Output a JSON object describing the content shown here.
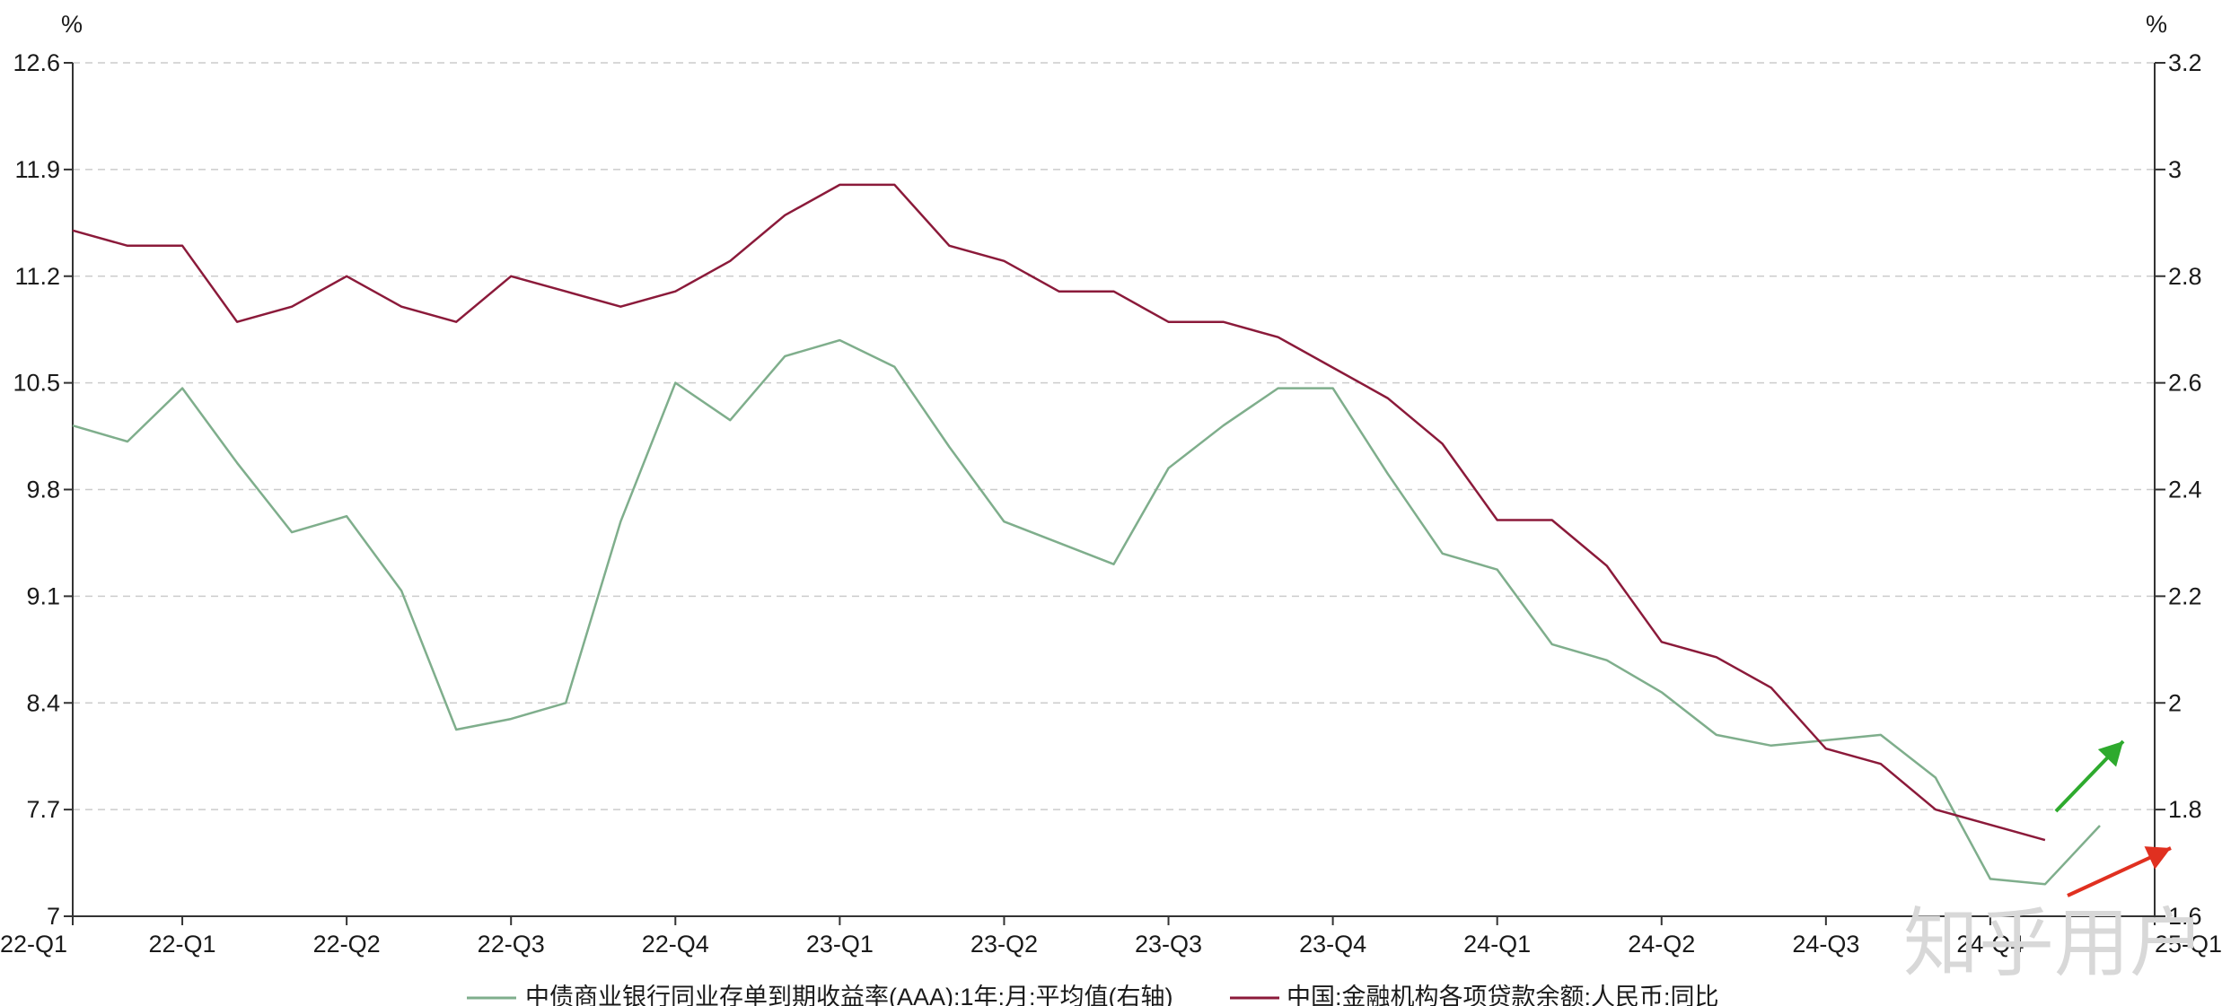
{
  "chart_data": {
    "type": "line",
    "left_axis": {
      "unit": "%",
      "ylim": [
        7,
        12.6
      ],
      "ticks": [
        "7",
        "7.7",
        "8.4",
        "9.1",
        "9.8",
        "10.5",
        "11.2",
        "11.9",
        "12.6"
      ]
    },
    "right_axis": {
      "unit": "%",
      "ylim": [
        1.6,
        3.2
      ],
      "ticks": [
        "1.6",
        "1.8",
        "2",
        "2.2",
        "2.4",
        "2.6",
        "2.8",
        "3",
        "3.2"
      ]
    },
    "x_ticks": [
      "22-Q1",
      "22-Q1",
      "22-Q2",
      "22-Q3",
      "22-Q4",
      "23-Q1",
      "23-Q2",
      "23-Q3",
      "23-Q4",
      "24-Q1",
      "24-Q2",
      "24-Q3",
      "24-Q4",
      "25-Q1"
    ],
    "x_tick_months": [
      0,
      2,
      5,
      8,
      11,
      14,
      17,
      20,
      23,
      26,
      29,
      32,
      35,
      38
    ],
    "x_months": 38,
    "grid": true,
    "legend_position": "bottom",
    "series": [
      {
        "name": "中债商业银行同业存单到期收益率(AAA):1年:月:平均值(右轴)",
        "axis": "right",
        "color": "#7fae8c",
        "values": [
          2.52,
          2.49,
          2.59,
          2.45,
          2.32,
          2.35,
          2.21,
          1.95,
          1.97,
          2.0,
          2.34,
          2.6,
          2.53,
          2.65,
          2.68,
          2.63,
          2.48,
          2.34,
          2.3,
          2.26,
          2.44,
          2.52,
          2.59,
          2.59,
          2.43,
          2.28,
          2.25,
          2.11,
          2.08,
          2.02,
          1.94,
          1.92,
          1.93,
          1.94,
          1.86,
          1.67,
          1.66,
          1.77
        ]
      },
      {
        "name": "中国:金融机构各项贷款余额:人民币:同比",
        "axis": "left",
        "color": "#8b1a3a",
        "values": [
          11.5,
          11.4,
          11.4,
          10.9,
          11.0,
          11.2,
          11.0,
          10.9,
          11.2,
          11.1,
          11.0,
          11.1,
          11.3,
          11.6,
          11.8,
          11.8,
          11.4,
          11.3,
          11.1,
          11.1,
          10.9,
          10.9,
          10.8,
          10.6,
          10.4,
          10.1,
          9.6,
          9.6,
          9.3,
          8.8,
          8.7,
          8.5,
          8.1,
          8.0,
          7.7,
          7.6,
          7.5
        ]
      }
    ],
    "annotations": [
      {
        "type": "arrow",
        "color": "#2eaa2e",
        "direction": "up-right"
      },
      {
        "type": "arrow",
        "color": "#e03020",
        "direction": "up-right"
      }
    ]
  },
  "watermark": "知乎用户"
}
